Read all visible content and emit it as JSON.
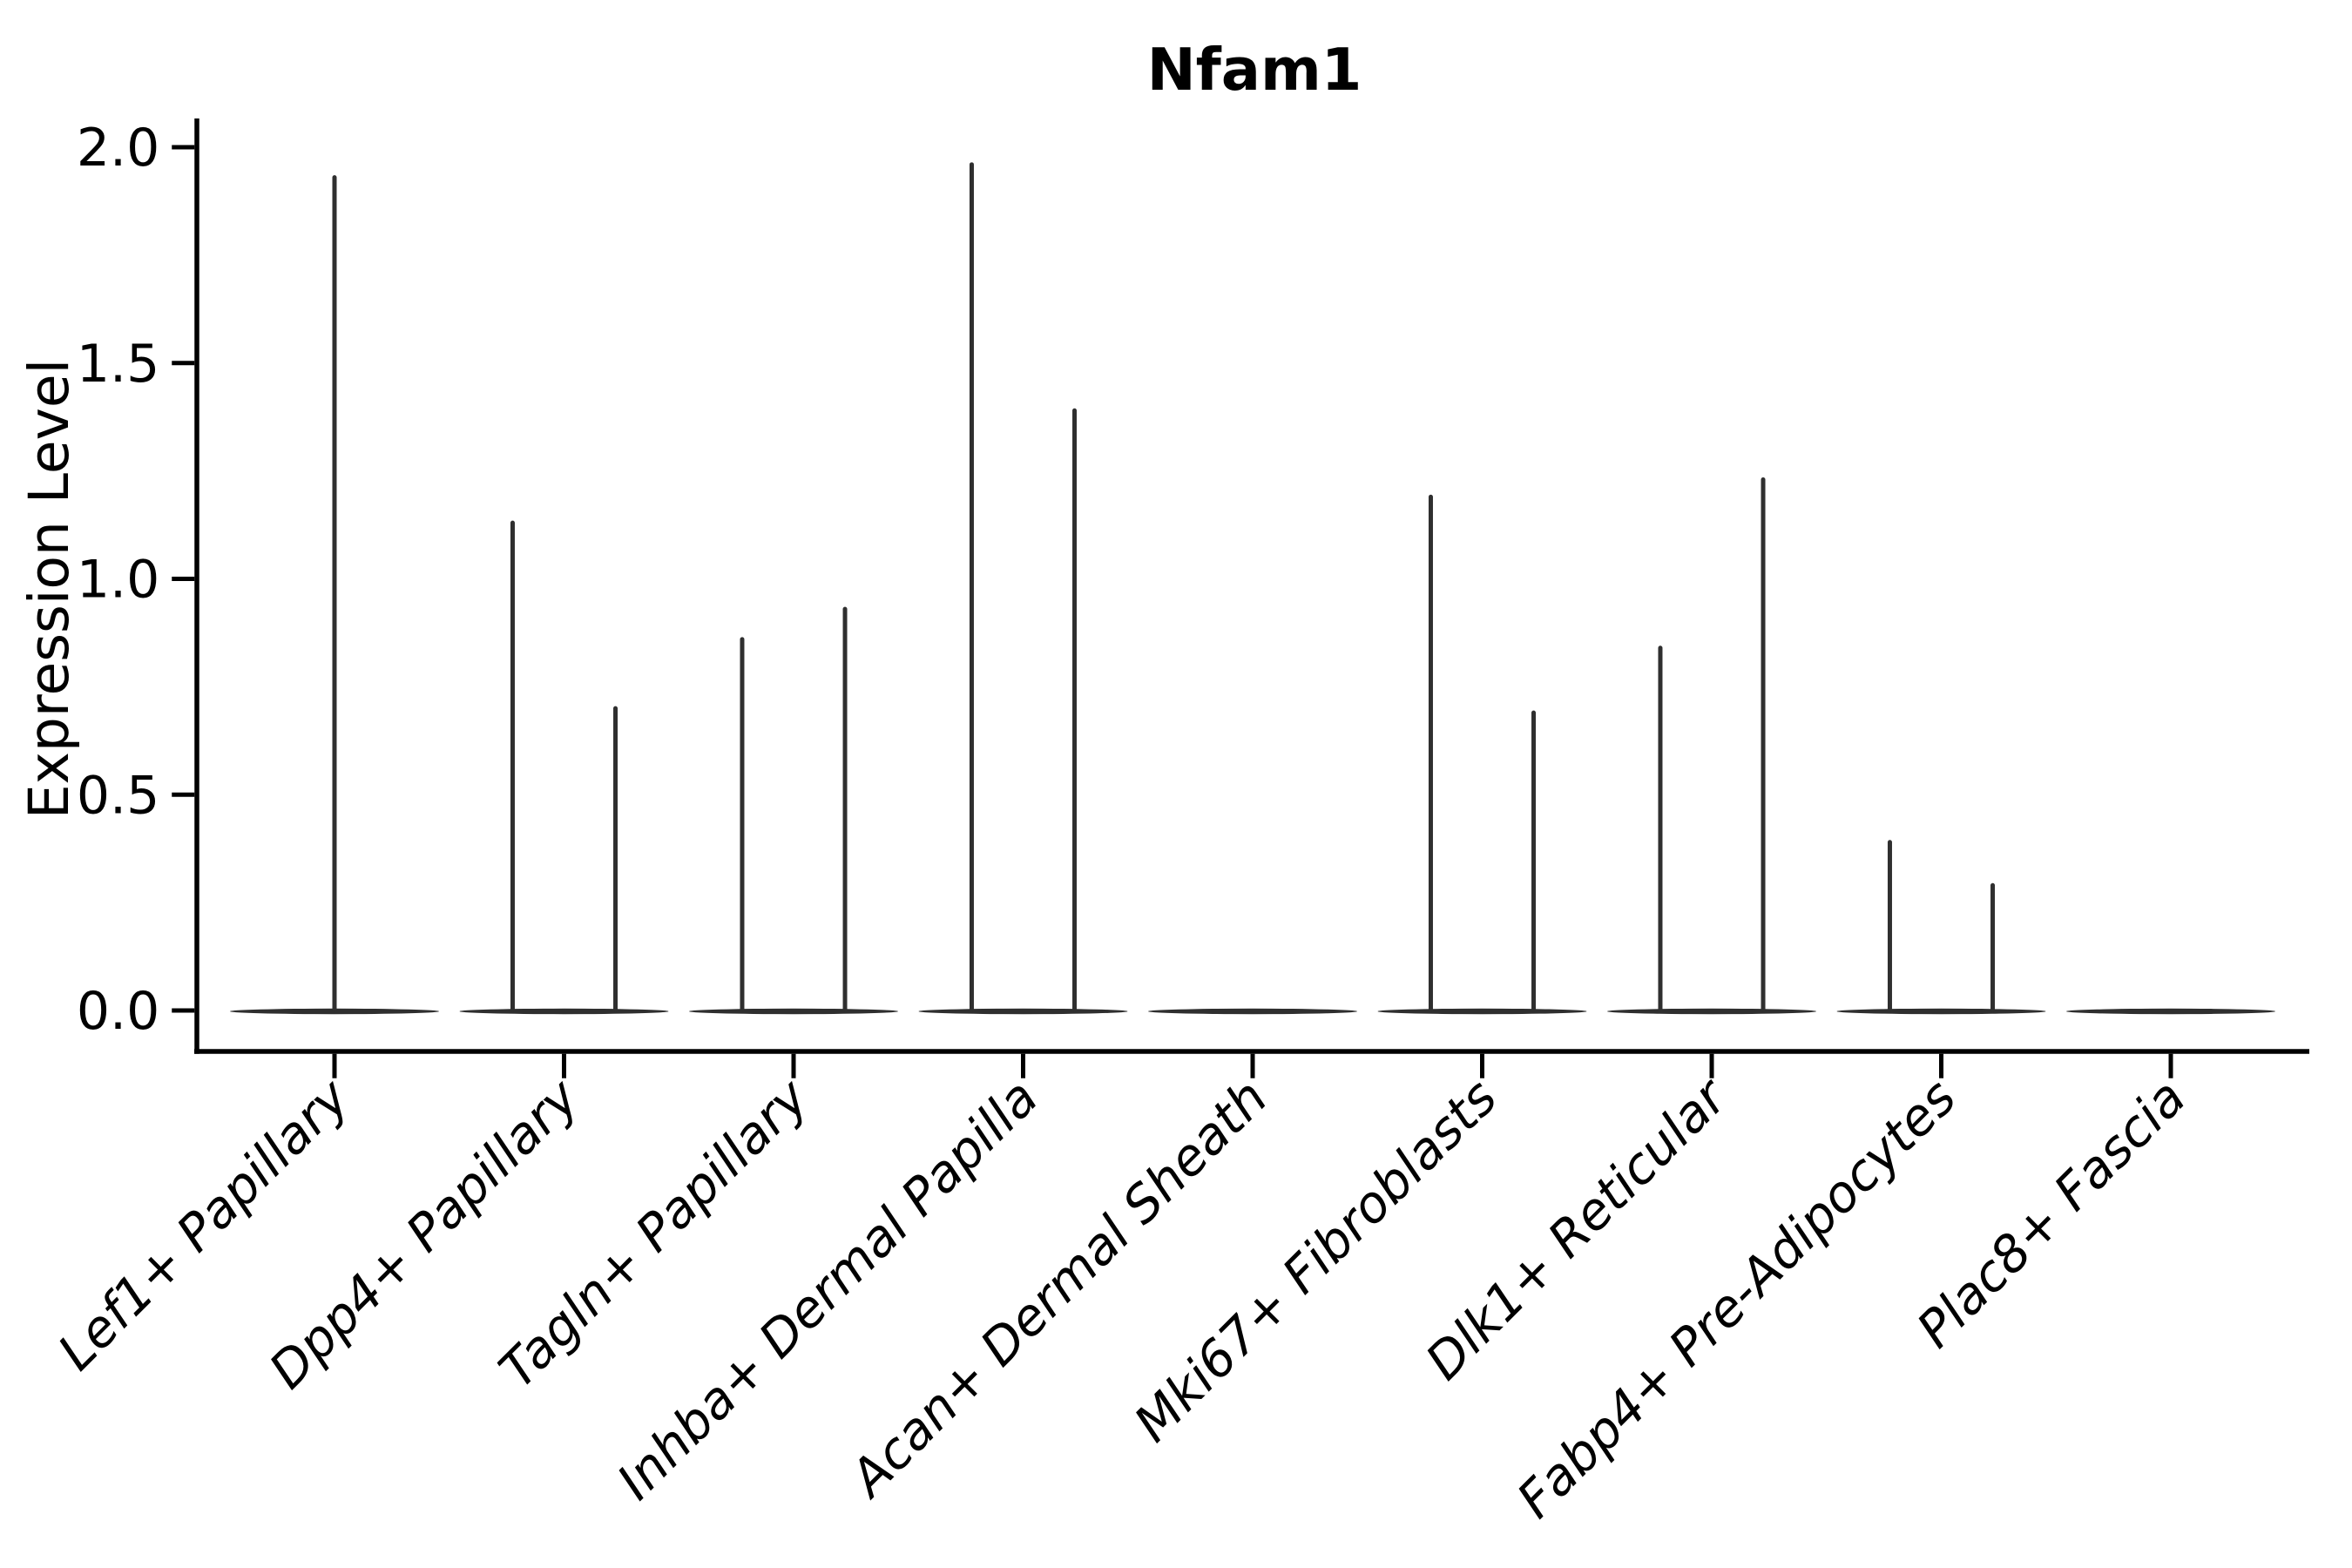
{
  "title": "Nfam1",
  "chart_data": {
    "type": "violin",
    "title": "Nfam1",
    "xlabel": "",
    "ylabel": "Expression Level",
    "ylim": [
      0,
      2.0
    ],
    "yticks": [
      0.0,
      0.5,
      1.0,
      1.5,
      2.0
    ],
    "ytick_labels": [
      "0.0",
      "0.5",
      "1.0",
      "1.5",
      "2.0"
    ],
    "grid": false,
    "legend": null,
    "background_color": "#ffffff",
    "axis_color": "#000000",
    "violin_color": "#2f2f2f",
    "categories": [
      "Lef1+ Papillary",
      "Dpp4+ Papillary",
      "Tagln+ Papillary",
      "Inhba+ Dermal Papilla",
      "Acan+ Dermal Sheath",
      "Mki67+ Fibroblasts",
      "Dlk1+ Reticular",
      "Fabp4+ Pre-Adipocytes",
      "Plac8+ Fascia"
    ],
    "violins": [
      {
        "category": "Lef1+ Papillary",
        "baseline": true,
        "spikes": [
          {
            "offset": 0.0,
            "max": 1.93
          }
        ]
      },
      {
        "category": "Dpp4+ Papillary",
        "baseline": true,
        "spikes": [
          {
            "offset": -0.224,
            "max": 1.13
          },
          {
            "offset": 0.224,
            "max": 0.7
          }
        ]
      },
      {
        "category": "Tagln+ Papillary",
        "baseline": true,
        "spikes": [
          {
            "offset": -0.224,
            "max": 0.86
          },
          {
            "offset": 0.224,
            "max": 0.93
          }
        ]
      },
      {
        "category": "Inhba+ Dermal Papilla",
        "baseline": true,
        "spikes": [
          {
            "offset": -0.224,
            "max": 1.96
          },
          {
            "offset": 0.224,
            "max": 1.39
          }
        ]
      },
      {
        "category": "Acan+ Dermal Sheath",
        "baseline": true,
        "spikes": []
      },
      {
        "category": "Mki67+ Fibroblasts",
        "baseline": true,
        "spikes": [
          {
            "offset": -0.224,
            "max": 1.19
          },
          {
            "offset": 0.224,
            "max": 0.69
          }
        ]
      },
      {
        "category": "Dlk1+ Reticular",
        "baseline": true,
        "spikes": [
          {
            "offset": -0.224,
            "max": 0.84
          },
          {
            "offset": 0.224,
            "max": 1.23
          }
        ]
      },
      {
        "category": "Fabp4+ Pre-Adipocytes",
        "baseline": true,
        "spikes": [
          {
            "offset": -0.224,
            "max": 0.39
          },
          {
            "offset": 0.224,
            "max": 0.29
          }
        ]
      },
      {
        "category": "Plac8+ Fascia",
        "baseline": true,
        "spikes": []
      }
    ]
  }
}
